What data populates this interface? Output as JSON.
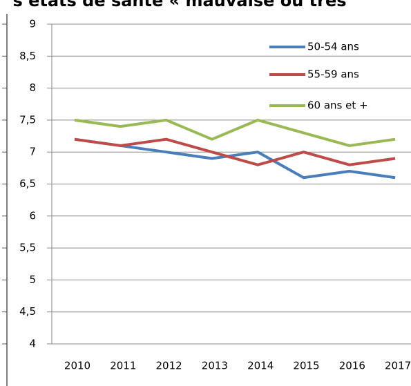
{
  "chart_data": {
    "type": "line",
    "title": "s états de santé « mauvaise ou très",
    "categories": [
      "2010",
      "2011",
      "2012",
      "2013",
      "2014",
      "2015",
      "2016",
      "2017"
    ],
    "series": [
      {
        "name": "50-54 ans",
        "color": "#4a7ebb",
        "values": [
          7.2,
          7.1,
          7.0,
          6.9,
          7.0,
          6.6,
          6.7,
          6.6
        ]
      },
      {
        "name": "55-59 ans",
        "color": "#be4b48",
        "values": [
          7.2,
          7.1,
          7.2,
          7.0,
          6.8,
          7.0,
          6.8,
          6.9
        ]
      },
      {
        "name": "60 ans et +",
        "color": "#98b954",
        "values": [
          7.5,
          7.4,
          7.5,
          7.2,
          7.5,
          7.3,
          7.1,
          7.2
        ]
      }
    ],
    "ylim": [
      4,
      9
    ],
    "yticks": [
      9,
      {
        "value": 8.5,
        "label": "8,5"
      },
      8,
      {
        "value": 7.5,
        "label": "7,5"
      },
      7,
      {
        "value": 6.5,
        "label": "6,5"
      },
      6,
      {
        "value": 5.5,
        "label": "5,5"
      },
      5,
      {
        "value": 4.5,
        "label": "4,5"
      },
      4
    ],
    "grid": true
  }
}
